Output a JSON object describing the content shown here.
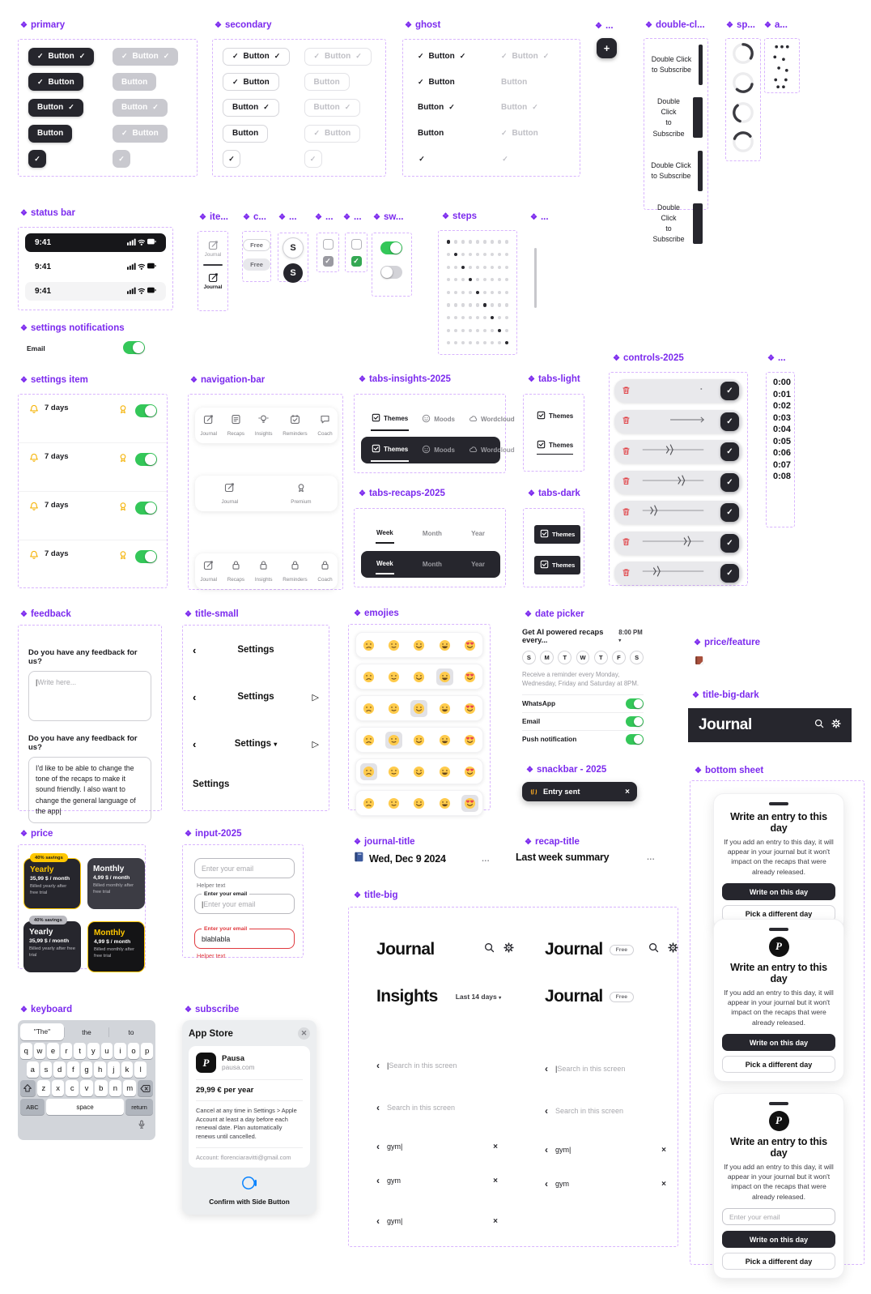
{
  "colors": {
    "accent": "#7c2bee",
    "dark": "#26262d",
    "green": "#34c759",
    "yellow": "#ffc700",
    "red": "#e0393e"
  },
  "sections": {
    "primary": "primary",
    "secondary": "secondary",
    "ghost": "ghost",
    "dots_a": "...",
    "double_click": "double-cl...",
    "spinner": "sp...",
    "anim": "a...",
    "status_bar": "status bar",
    "items": "ite...",
    "chips": "c...",
    "avatars": "...",
    "checks_gray": "...",
    "checks_green": "...",
    "switches": "sw...",
    "steps": "steps",
    "dots_b": "...",
    "settings_notifications": "settings notifications",
    "settings_item": "settings item",
    "navigation_bar": "navigation-bar",
    "tabs_insights": "tabs-insights-2025",
    "tabs_light": "tabs-light",
    "tabs_recaps": "tabs-recaps-2025",
    "tabs_dark": "tabs-dark",
    "controls": "controls-2025",
    "times": "...",
    "feedback": "feedback",
    "title_small": "title-small",
    "emojies": "emojies",
    "date_picker": "date picker",
    "price_feature": "price/feature",
    "title_big_dark": "title-big-dark",
    "snackbar": "snackbar - 2025",
    "bottom_sheet": "bottom sheet",
    "price": "price",
    "input": "input-2025",
    "journal_title": "journal-title",
    "recap_title": "recap-title",
    "title_big": "title-big",
    "keyboard": "keyboard",
    "subscribe": "subscribe"
  },
  "buttons": {
    "label": "Button",
    "enabled": [
      [
        1,
        1,
        1
      ],
      [
        1,
        1,
        0
      ],
      [
        0,
        1,
        1
      ],
      [
        0,
        1,
        0
      ],
      [
        1,
        0,
        0
      ]
    ],
    "disabled": [
      [
        1,
        1,
        1
      ],
      [
        0,
        1,
        0
      ],
      [
        0,
        1,
        1
      ],
      [
        1,
        1,
        0
      ],
      [
        1,
        0,
        0
      ]
    ]
  },
  "plus": "+",
  "double_click": {
    "line1": "Double Click",
    "line2": "to Subscribe",
    "bars": [
      5,
      12,
      6,
      12
    ]
  },
  "spinner_rotations": [
    -90,
    10,
    110,
    200
  ],
  "anim_dots": [
    [
      14,
      10
    ],
    [
      21,
      10
    ],
    [
      28,
      10
    ],
    [
      12,
      23
    ],
    [
      23,
      26
    ],
    [
      17,
      37
    ],
    [
      27,
      40
    ],
    [
      13,
      52
    ],
    [
      26,
      52
    ],
    [
      16,
      61
    ],
    [
      23,
      61
    ]
  ],
  "status_bar": {
    "time": "9:41",
    "variants": [
      "dark",
      "white",
      "light"
    ]
  },
  "items": {
    "label": "Journal"
  },
  "chips": {
    "label": "Free"
  },
  "avatars": {
    "letter": "S"
  },
  "steps": {
    "rows": 9,
    "cols": 9
  },
  "settings_notifications": {
    "label": "Email"
  },
  "settings_item": {
    "rows": [
      "7 days",
      "7 days",
      "7 days",
      "7 days"
    ]
  },
  "navigation_bar": {
    "bar1": [
      {
        "icon": "edit",
        "label": "Journal"
      },
      {
        "icon": "note",
        "label": "Recaps"
      },
      {
        "icon": "bulb",
        "label": "Insights"
      },
      {
        "icon": "calendar",
        "label": "Reminders"
      },
      {
        "icon": "chat",
        "label": "Coach"
      }
    ],
    "bar2": [
      {
        "icon": "edit",
        "label": "Journal"
      },
      {
        "icon": "medal",
        "label": "Premium"
      }
    ],
    "bar3": [
      {
        "icon": "edit",
        "label": "Journal"
      },
      {
        "icon": "lock",
        "label": "Recaps"
      },
      {
        "icon": "lock",
        "label": "Insights"
      },
      {
        "icon": "lock",
        "label": "Reminders"
      },
      {
        "icon": "lock",
        "label": "Coach"
      }
    ]
  },
  "tabs_insights": {
    "tabs": [
      {
        "icon": "themes",
        "label": "Themes"
      },
      {
        "icon": "moods",
        "label": "Moods"
      },
      {
        "icon": "wordcloud",
        "label": "Wordcloud"
      }
    ],
    "active": 0
  },
  "tabs_recaps": {
    "tabs": [
      "Week",
      "Month",
      "Year"
    ],
    "active": 0
  },
  "tabs_light": {
    "label": "Themes"
  },
  "tabs_dark": {
    "label": "Themes"
  },
  "controls": {
    "rows": [
      "dot",
      "arrow",
      0.42,
      0.62,
      0.15,
      0.72,
      0.2
    ]
  },
  "times": [
    "0:00",
    "0:01",
    "0:02",
    "0:03",
    "0:04",
    "0:05",
    "0:06",
    "0:07",
    "0:08"
  ],
  "feedback": {
    "question": "Do you have any feedback for us?",
    "placeholder": "Write here...",
    "filled": "I'd like to be able to change the tone of the recaps to make it sound friendly. I also want to change the general language of the app"
  },
  "title_small": {
    "title": "Settings",
    "rows": [
      {
        "back": 1
      },
      {
        "back": 1,
        "send": 1
      },
      {
        "back": 1,
        "chev": 1,
        "send": 1
      },
      {
        "plain": 1
      }
    ]
  },
  "emojies": {
    "set": [
      "confused",
      "slight",
      "smile",
      "grin",
      "heart"
    ],
    "rows": [
      -1,
      3,
      2,
      1,
      0,
      4
    ]
  },
  "date_picker": {
    "title": "Get AI powered recaps every...",
    "time": "8:00 PM",
    "days": [
      "S",
      "M",
      "T",
      "W",
      "T",
      "F",
      "S"
    ],
    "note": "Receive a reminder every Monday, Wednesday, Friday and Saturday at 8PM.",
    "toggles": [
      "WhatsApp",
      "Email",
      "Push notification"
    ]
  },
  "snackbar": {
    "text": "Entry sent",
    "close": "×"
  },
  "title_big_dark": {
    "title": "Journal"
  },
  "bottom_sheet": {
    "title": "Write an entry to this day",
    "body": "If you add an entry to this day, it will appear in your journal but it won't impact on the recaps that were already released.",
    "primary": "Write on this day",
    "secondary": "Pick a different day",
    "email_placeholder": "Enter your email",
    "cards": [
      {
        "logo": false,
        "email": false
      },
      {
        "logo": true,
        "email": false
      },
      {
        "logo": true,
        "email": true
      }
    ],
    "logo_letter": "P"
  },
  "price": {
    "cards": [
      {
        "badge": "40% savings",
        "badge_yellow": true,
        "title": "Yearly",
        "title_yellow": true,
        "price": "35,99 $ / month",
        "note": "Billed yearly after free trial",
        "bg": "#26262d",
        "border": true
      },
      {
        "badge": null,
        "title": "Monthly",
        "title_yellow": false,
        "price": "4,99 $ / month",
        "note": "Billed monthly after free trial",
        "bg": "#3c3c44",
        "border": false
      },
      {
        "badge": "40% savings",
        "badge_yellow": false,
        "title": "Yearly",
        "title_yellow": false,
        "price": "35,99 $ / month",
        "note": "Billed yearly after free trial",
        "bg": "#26262d",
        "border": false
      },
      {
        "badge": null,
        "title": "Monthly",
        "title_yellow": true,
        "price": "4,99 $ / month",
        "note": "Billed monthly after free trial",
        "bg": "#141416",
        "border": true
      }
    ]
  },
  "input": {
    "fields": [
      {
        "label": null,
        "placeholder": "Enter your email",
        "value": null,
        "helper": "Helper text",
        "error": false,
        "cursor": false
      },
      {
        "label": "Enter your email",
        "placeholder": "Enter your email",
        "value": null,
        "helper": null,
        "error": false,
        "cursor": true
      },
      {
        "label": "Enter your email",
        "placeholder": null,
        "value": "blablabla",
        "helper": "Helper text",
        "error": true,
        "cursor": false
      }
    ]
  },
  "journal_title": {
    "text": "Wed, Dec 9 2024",
    "more": "..."
  },
  "recap_title": {
    "text": "Last week summary",
    "more": "..."
  },
  "title_big": {
    "headers": [
      {
        "title": "Journal",
        "badge": null,
        "search": true,
        "gear": true,
        "dropdown": null
      },
      {
        "title": "Journal",
        "badge": "Free",
        "search": true,
        "gear": true,
        "dropdown": null
      },
      {
        "title": "Insights",
        "badge": null,
        "search": false,
        "gear": false,
        "dropdown": "Last 14 days"
      },
      {
        "title": "Journal",
        "badge": "Free",
        "search": false,
        "gear": false,
        "dropdown": null
      }
    ],
    "search_placeholder": "Search in this screen",
    "query": "gym",
    "left_rows": [
      "cursor-placeholder",
      "placeholder",
      "query-cursor",
      "query",
      "query-cursor"
    ],
    "right_rows": [
      "cursor-placeholder",
      "placeholder",
      "query-cursor",
      "query"
    ]
  },
  "keyboard": {
    "suggestions": [
      "\"The\"",
      "the",
      "to"
    ],
    "rows": [
      "qwertyuiop",
      "asdfghjkl",
      "zxcvbnm"
    ],
    "abc": "ABC",
    "space": "space",
    "return": "return"
  },
  "subscribe": {
    "header": "App Store",
    "app": "Pausa",
    "domain": "pausa.com",
    "price": "29,99 € per year",
    "terms": "Cancel at any time in Settings > Apple Account at least a day before each renewal date. Plan automatically renews until cancelled.",
    "account": "Account: florenciaravitti@gmail.com",
    "confirm": "Confirm with Side Button",
    "logo_letter": "P"
  }
}
